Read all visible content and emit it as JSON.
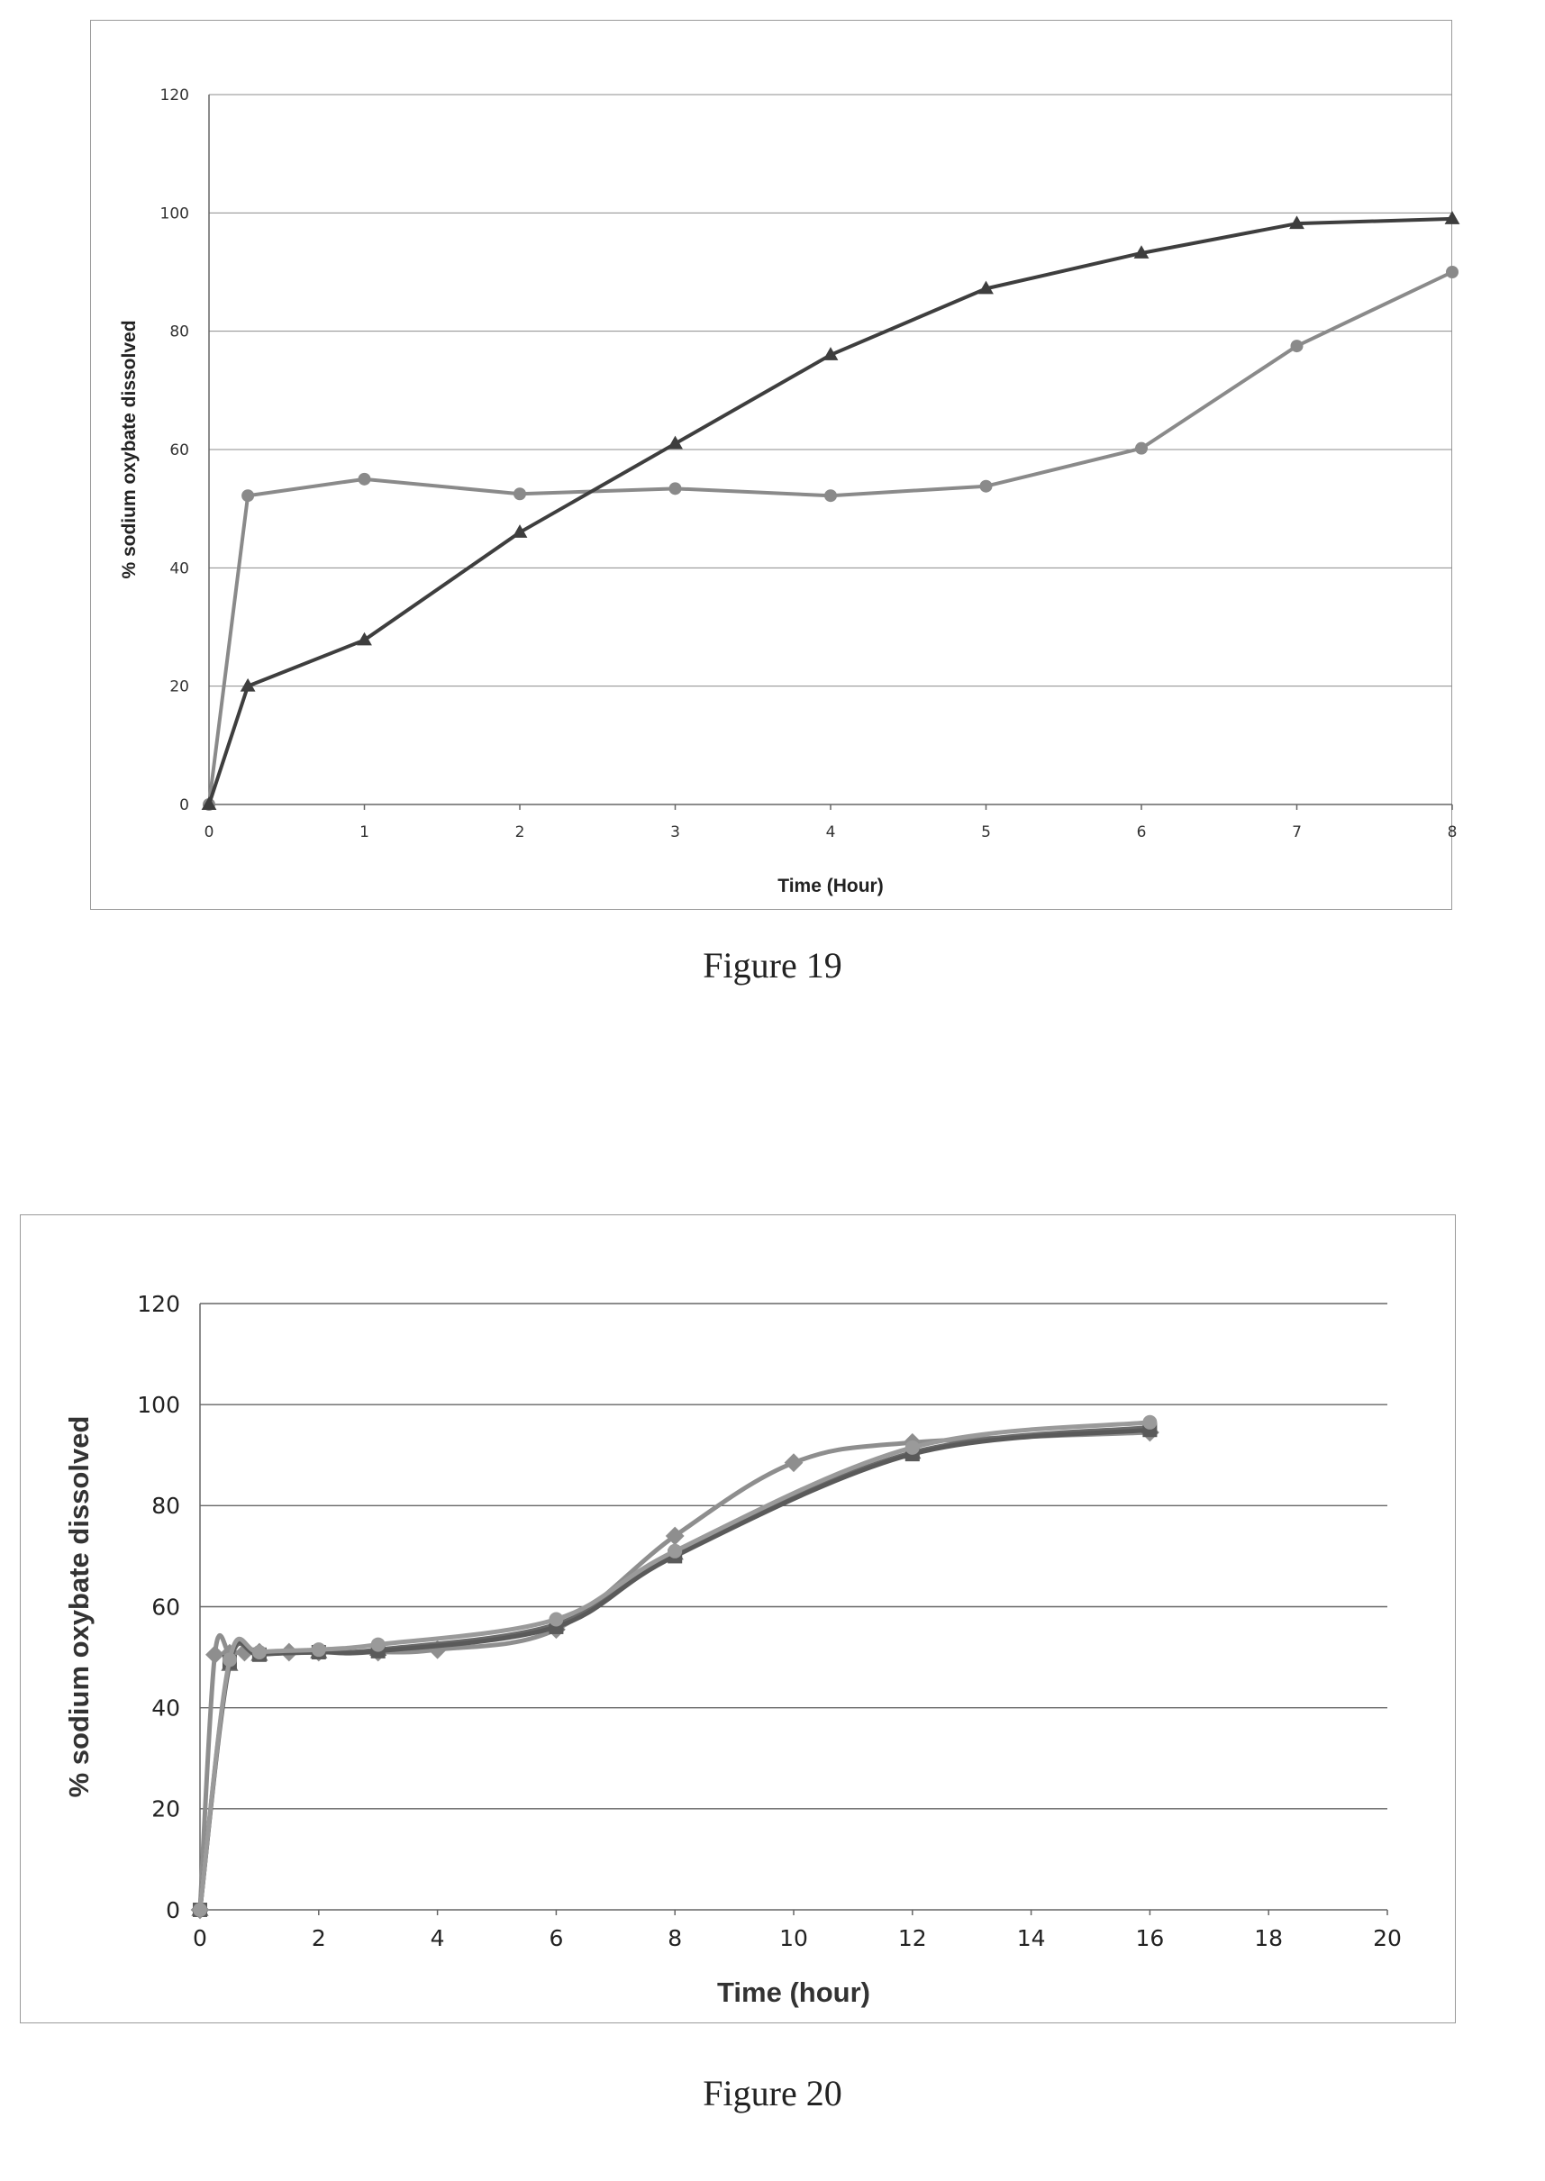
{
  "figure_19": {
    "caption": "Figure 19",
    "chart_data": {
      "type": "line",
      "title": "",
      "xlabel": "Time (Hour)",
      "ylabel": "% sodium oxybate dissolved",
      "xlim": [
        0,
        8
      ],
      "ylim": [
        0,
        120
      ],
      "x_ticks": [
        "0",
        "1",
        "2",
        "3",
        "4",
        "5",
        "6",
        "7",
        "8"
      ],
      "y_ticks": [
        "0",
        "20",
        "40",
        "60",
        "80",
        "100",
        "120"
      ],
      "grid": true,
      "legend": "none",
      "series": [
        {
          "marker": "circle",
          "color": "#8a8a8a",
          "x": [
            0,
            0.25,
            1,
            2,
            3,
            4,
            5,
            6,
            7,
            8
          ],
          "y": [
            0,
            52.2,
            55,
            52.5,
            53.4,
            52.2,
            53.8,
            60.2,
            77.5,
            90
          ]
        },
        {
          "marker": "triangle",
          "color": "#3e3e3e",
          "x": [
            0,
            0.25,
            1,
            2,
            3,
            4,
            5,
            6,
            7,
            8
          ],
          "y": [
            0,
            20,
            27.8,
            46,
            61,
            76,
            87.2,
            93.2,
            98.2,
            99
          ]
        }
      ]
    }
  },
  "figure_20": {
    "caption": "Figure 20",
    "chart_data": {
      "type": "line",
      "title": "",
      "xlabel": "Time (hour)",
      "ylabel": "% sodium oxybate dissolved",
      "xlim": [
        0,
        20
      ],
      "ylim": [
        0,
        120
      ],
      "x_ticks": [
        "0",
        "2",
        "4",
        "6",
        "8",
        "10",
        "12",
        "14",
        "16",
        "18",
        "20"
      ],
      "y_ticks": [
        "0",
        "20",
        "40",
        "60",
        "80",
        "100",
        "120"
      ],
      "grid": true,
      "legend": "none",
      "series": [
        {
          "marker": "diamond",
          "color": "#8e8e8e",
          "x": [
            0,
            0.25,
            0.5,
            0.75,
            1,
            1.5,
            2,
            3,
            4,
            6,
            8,
            10,
            12,
            16
          ],
          "y": [
            0,
            50.5,
            50.8,
            51,
            51,
            51,
            51,
            51,
            51.5,
            55.5,
            74,
            88.5,
            92.5,
            94.5
          ]
        },
        {
          "marker": "triangle",
          "color": "#6a6a6a",
          "x": [
            0,
            0.5,
            1,
            2,
            3,
            6,
            8,
            12,
            16
          ],
          "y": [
            0,
            48.5,
            50.5,
            51,
            51.5,
            56.5,
            70.5,
            90.5,
            95.5
          ]
        },
        {
          "marker": "square",
          "color": "#5a5a5a",
          "x": [
            0,
            0.5,
            1,
            2,
            3,
            6,
            8,
            12,
            16
          ],
          "y": [
            0,
            49,
            50.5,
            51,
            51.2,
            56,
            70,
            90.2,
            95
          ]
        },
        {
          "marker": "circle",
          "color": "#9a9a9a",
          "x": [
            0,
            0.5,
            1,
            2,
            3,
            6,
            8,
            12,
            16
          ],
          "y": [
            0,
            49.5,
            51,
            51.5,
            52.5,
            57.5,
            71,
            91.5,
            96.5
          ]
        }
      ]
    }
  }
}
